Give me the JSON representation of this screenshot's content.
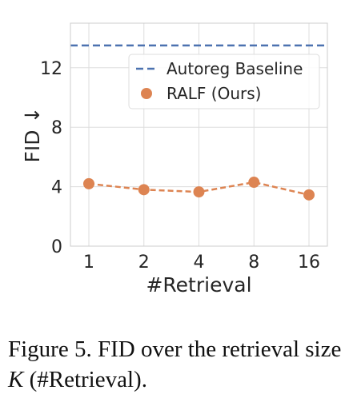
{
  "chart_data": {
    "type": "line",
    "categories": [
      "1",
      "2",
      "4",
      "8",
      "16"
    ],
    "series": [
      {
        "name": "RALF (Ours)",
        "values": [
          4.2,
          3.8,
          3.65,
          4.3,
          3.45
        ],
        "color": "#DD8452",
        "style": "dashed line with circle markers"
      }
    ],
    "baseline": {
      "name": "Autoreg Baseline",
      "value": 13.5,
      "color": "#4C72B0",
      "style": "dashed"
    },
    "xlabel": "#Retrieval",
    "ylabel": "FID ↓",
    "ylim": [
      0,
      15
    ],
    "yticks": [
      0,
      4,
      8,
      12
    ],
    "grid": true,
    "legend_position": "top-right"
  },
  "caption": {
    "prefix": "Figure 5. FID over the retrieval size ",
    "math": "K",
    "suffix": " (#Retrieval)."
  }
}
